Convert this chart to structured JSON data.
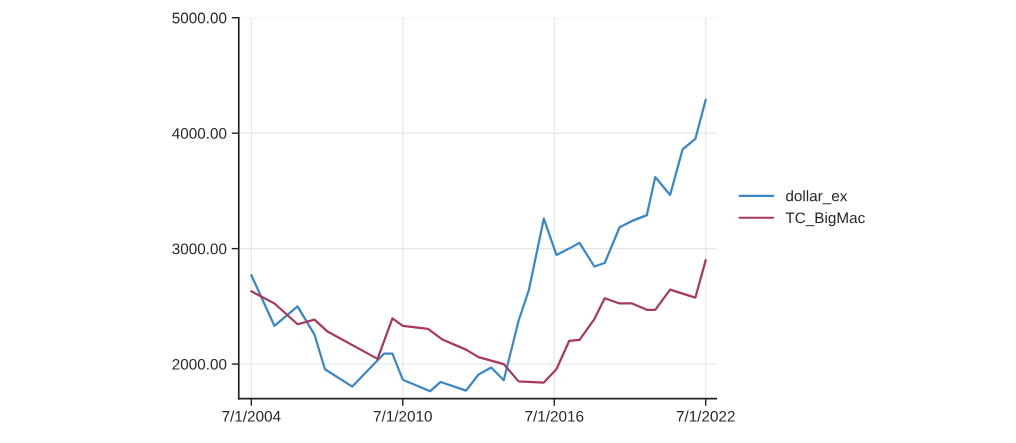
{
  "chart_data": {
    "type": "line",
    "ylim": [
      1700,
      5000
    ],
    "yticks": [
      {
        "value": 2000,
        "label": "2000.00"
      },
      {
        "value": 3000,
        "label": "3000.00"
      },
      {
        "value": 4000,
        "label": "4000.00"
      },
      {
        "value": 5000,
        "label": "5000.00"
      }
    ],
    "xlim": [
      "2004-01-01",
      "2022-12-01"
    ],
    "xticks": [
      {
        "value": "2004-07-01",
        "label": "7/1/2004"
      },
      {
        "value": "2010-07-01",
        "label": "7/1/2010"
      },
      {
        "value": "2016-07-01",
        "label": "7/1/2016"
      },
      {
        "value": "2022-07-01",
        "label": "7/1/2022"
      }
    ],
    "grid": true,
    "legend": "right",
    "line_style": "solid",
    "marker": "none",
    "series": [
      {
        "name": "dollar_ex",
        "color": "#3a87c8",
        "x": [
          "2004-07-01",
          "2005-06-01",
          "2006-05-01",
          "2007-01-01",
          "2007-06-01",
          "2008-07-01",
          "2009-10-01",
          "2010-02-01",
          "2010-07-01",
          "2011-08-01",
          "2012-01-01",
          "2013-01-01",
          "2013-07-01",
          "2014-01-01",
          "2014-07-01",
          "2015-02-01",
          "2015-07-01",
          "2016-02-01",
          "2016-08-01",
          "2017-02-01",
          "2017-07-01",
          "2018-02-01",
          "2018-07-01",
          "2019-02-01",
          "2019-08-01",
          "2020-03-01",
          "2020-07-01",
          "2021-02-01",
          "2021-08-01",
          "2022-02-01",
          "2022-07-01"
        ],
        "values": [
          2770,
          2330,
          2500,
          2255,
          1955,
          1805,
          2090,
          2090,
          1865,
          1765,
          1845,
          1770,
          1910,
          1970,
          1860,
          2375,
          2645,
          3260,
          2945,
          3000,
          3050,
          2845,
          2875,
          3185,
          3240,
          3290,
          3620,
          3465,
          3860,
          3950,
          4290
        ]
      },
      {
        "name": "TC_BigMac",
        "color": "#a8385d",
        "x": [
          "2004-07-01",
          "2005-06-01",
          "2006-05-01",
          "2007-01-01",
          "2007-07-01",
          "2009-07-01",
          "2010-02-01",
          "2010-07-01",
          "2011-07-01",
          "2012-02-01",
          "2013-01-01",
          "2013-07-01",
          "2014-07-01",
          "2015-02-01",
          "2016-02-01",
          "2016-08-01",
          "2017-02-01",
          "2017-07-01",
          "2018-02-01",
          "2018-07-01",
          "2019-02-01",
          "2019-08-01",
          "2020-03-01",
          "2020-07-01",
          "2021-02-01",
          "2022-02-01",
          "2022-07-01"
        ],
        "values": [
          2630,
          2525,
          2345,
          2385,
          2285,
          2045,
          2395,
          2330,
          2305,
          2210,
          2125,
          2060,
          2000,
          1850,
          1840,
          1955,
          2200,
          2210,
          2390,
          2570,
          2525,
          2525,
          2470,
          2470,
          2645,
          2575,
          2900
        ]
      }
    ]
  }
}
